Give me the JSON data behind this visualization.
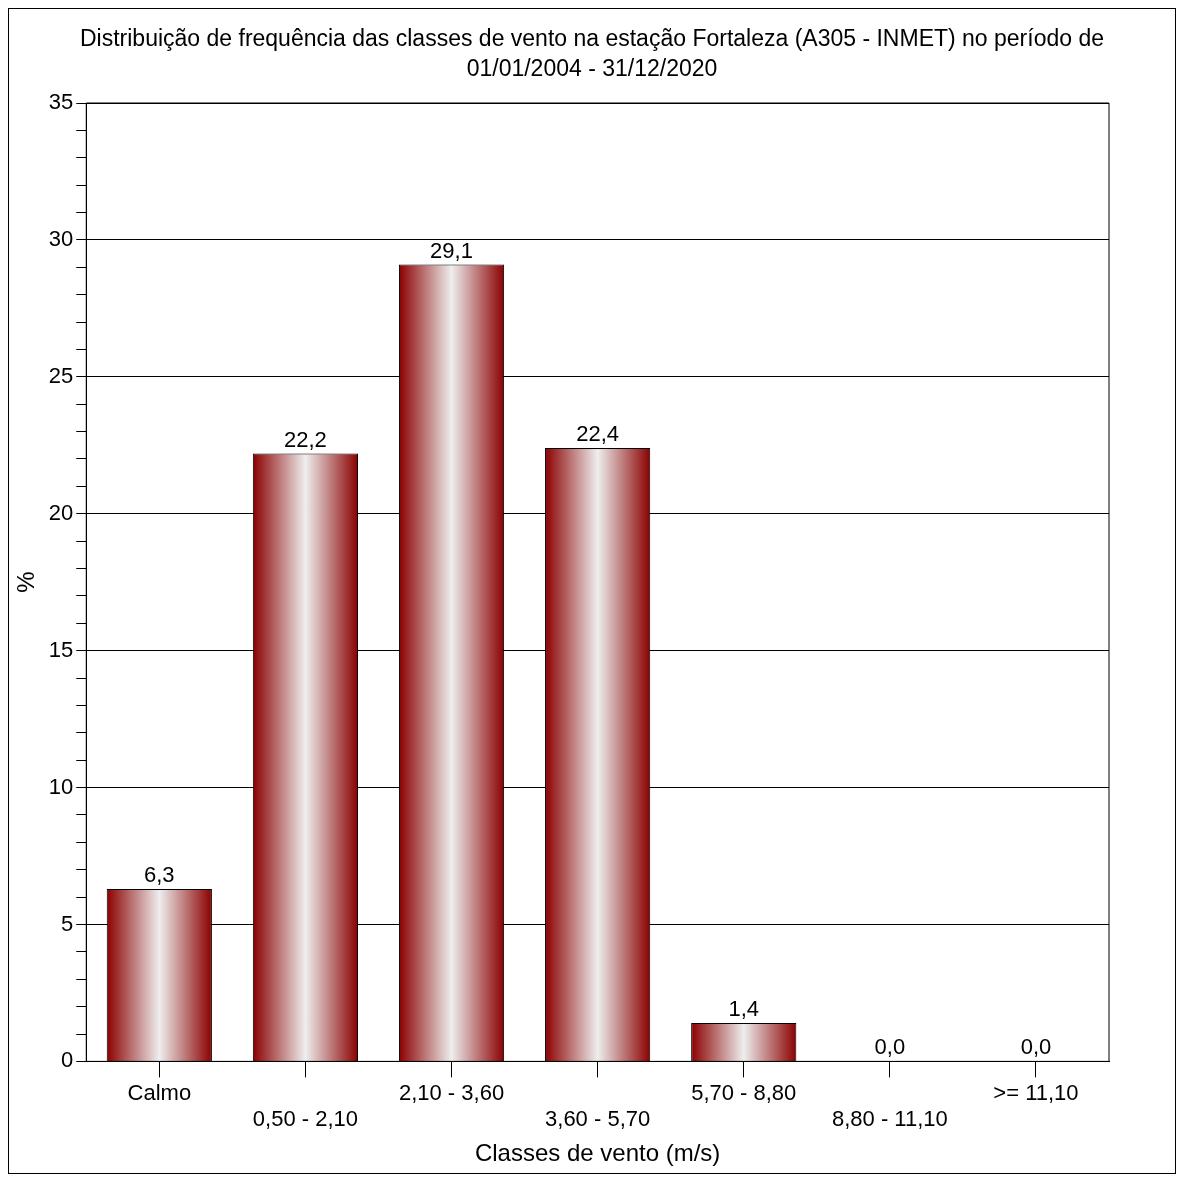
{
  "chart_data": {
    "type": "bar",
    "title": "Distribuição de frequência das classes de vento na estação Fortaleza (A305 - INMET) no período de 01/01/2004 - 31/12/2020",
    "xlabel": "Classes de vento (m/s)",
    "ylabel": "%",
    "categories": [
      "Calmo",
      "0,50 - 2,10",
      "2,10 - 3,60",
      "3,60 - 5,70",
      "5,70 - 8,80",
      "8,80 - 11,10",
      ">= 11,10"
    ],
    "values": [
      6.3,
      22.2,
      29.1,
      22.4,
      1.4,
      0.0,
      0.0
    ],
    "value_labels": [
      "6,3",
      "22,2",
      "29,1",
      "22,4",
      "1,4",
      "0,0",
      "0,0"
    ],
    "color": "#8b0000",
    "ylim": [
      0,
      35
    ],
    "yticks": [
      0,
      {
        "value": 1,
        "label": null
      },
      {
        "value": 2,
        "label": null
      },
      {
        "value": 3,
        "label": null
      },
      {
        "value": 4,
        "label": null
      },
      5,
      {
        "value": 6,
        "label": null
      },
      {
        "value": 7,
        "label": null
      },
      {
        "value": 8,
        "label": null
      },
      {
        "value": 9,
        "label": null
      },
      10,
      {
        "value": 11,
        "label": null
      },
      {
        "value": 12,
        "label": null
      },
      {
        "value": 13,
        "label": null
      },
      {
        "value": 14,
        "label": null
      },
      15,
      {
        "value": 16,
        "label": null
      },
      {
        "value": 17,
        "label": null
      },
      {
        "value": 18,
        "label": null
      },
      {
        "value": 19,
        "label": null
      },
      20,
      {
        "value": 21,
        "label": null
      },
      {
        "value": 22,
        "label": null
      },
      {
        "value": 23,
        "label": null
      },
      {
        "value": 24,
        "label": null
      },
      25,
      {
        "value": 26,
        "label": null
      },
      {
        "value": 27,
        "label": null
      },
      {
        "value": 28,
        "label": null
      },
      {
        "value": 29,
        "label": null
      },
      30,
      {
        "value": 31,
        "label": null
      },
      {
        "value": 32,
        "label": null
      },
      {
        "value": 33,
        "label": null
      },
      {
        "value": 34,
        "label": null
      },
      35
    ],
    "grid": "y"
  }
}
